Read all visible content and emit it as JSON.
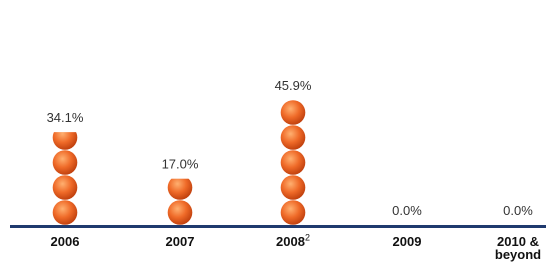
{
  "chart_data": {
    "type": "pictograph",
    "categories": [
      "2006",
      "2007",
      "2008",
      "2009",
      "2010 & beyond"
    ],
    "category_superscripts": [
      null,
      null,
      "2",
      null,
      null
    ],
    "values": [
      34.1,
      17.0,
      45.9,
      0.0,
      0.0
    ],
    "value_labels": [
      "34.1%",
      "17.0%",
      "45.9%",
      "0.0%",
      "0.0%"
    ],
    "color": "#e8652a",
    "axis_color": "#1f3a6e"
  }
}
